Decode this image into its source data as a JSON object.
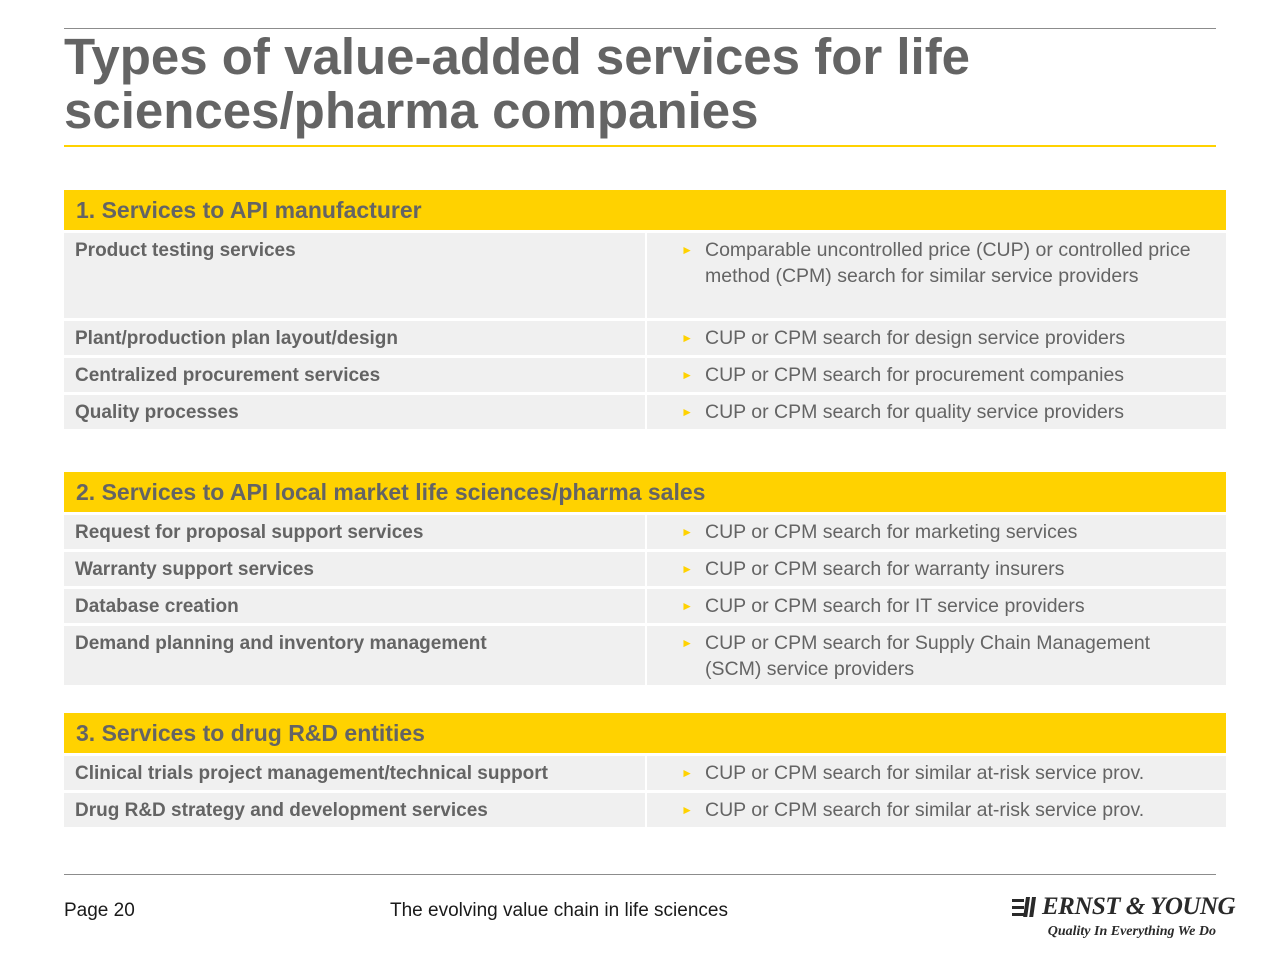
{
  "title": "Types of value-added services for life sciences/pharma companies",
  "sections": [
    {
      "header": "1. Services to API manufacturer",
      "rows": [
        {
          "service": "Product testing services",
          "method": "Comparable uncontrolled price (CUP) or controlled price method (CPM) search for similar service providers"
        },
        {
          "service": "Plant/production plan layout/design",
          "method": "CUP or CPM search for design service providers"
        },
        {
          "service": "Centralized procurement services",
          "method": "CUP or CPM search for procurement companies"
        },
        {
          "service": "Quality processes",
          "method": "CUP or CPM search for quality service providers"
        }
      ]
    },
    {
      "header": "2. Services to API local market life sciences/pharma sales",
      "rows": [
        {
          "service": "Request for proposal support services",
          "method": "CUP or CPM search for marketing services"
        },
        {
          "service": "Warranty support services",
          "method": "CUP or CPM search for warranty insurers"
        },
        {
          "service": "Database creation",
          "method": "CUP or CPM search for IT service providers"
        },
        {
          "service": "Demand planning and inventory management",
          "method": "CUP or CPM search for Supply Chain Management (SCM) service providers"
        }
      ]
    },
    {
      "header": "3. Services to drug R&D entities",
      "rows": [
        {
          "service": "Clinical trials project management/technical support",
          "method": "CUP or CPM search for similar at-risk service prov."
        },
        {
          "service": "Drug R&D strategy and development services",
          "method": "CUP or CPM search for similar at-risk service prov."
        }
      ]
    }
  ],
  "bullet_icon": "triangle-right-icon",
  "colors": {
    "accent": "#ffd200",
    "text": "#646464",
    "row_bg": "#f0f0f0"
  },
  "footer": {
    "page": "Page 20",
    "center": "The evolving value chain in life sciences",
    "logo_name": "ERNST & YOUNG",
    "logo_tagline": "Quality In Everything We Do"
  }
}
